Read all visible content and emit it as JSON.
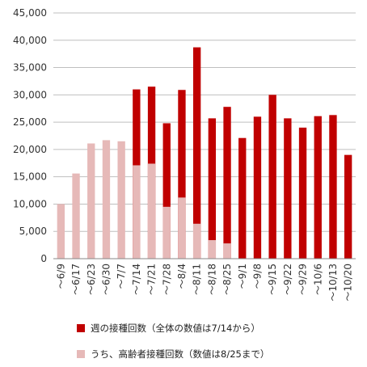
{
  "chart_data": {
    "type": "bar",
    "stacked": false,
    "categories": [
      "～6/9",
      "～6/17",
      "～6/23",
      "～6/30",
      "～7/7",
      "～7/14",
      "～7/21",
      "～7/28",
      "～8/4",
      "～8/11",
      "～8/18",
      "～8/25",
      "～9/1",
      "～9/8",
      "～9/15",
      "～9/22",
      "～9/29",
      "～10/6",
      "～10/13",
      "～10/20"
    ],
    "series": [
      {
        "name": "週の接種回数（全体の数値は7/14から）",
        "color": "#c00000",
        "values": [
          null,
          null,
          null,
          null,
          null,
          31000,
          31500,
          24800,
          30900,
          38700,
          25700,
          27800,
          22100,
          26000,
          30000,
          25700,
          24000,
          26100,
          26300,
          19000
        ]
      },
      {
        "name": "うち、高齢者接種回数（数値は8/25まで）",
        "color": "#e6b9b8",
        "values": [
          10000,
          15600,
          21100,
          21700,
          21500,
          17100,
          17400,
          9500,
          11200,
          6400,
          3400,
          2800,
          null,
          null,
          null,
          null,
          null,
          null,
          null,
          null
        ]
      }
    ],
    "y_ticks": [
      "0",
      "5,000",
      "10,000",
      "15,000",
      "20,000",
      "25,000",
      "30,000",
      "35,000",
      "40,000",
      "45,000"
    ],
    "ylim": [
      0,
      45000
    ],
    "grid": true,
    "legend_position": "bottom",
    "title": "",
    "xlabel": "",
    "ylabel": ""
  }
}
